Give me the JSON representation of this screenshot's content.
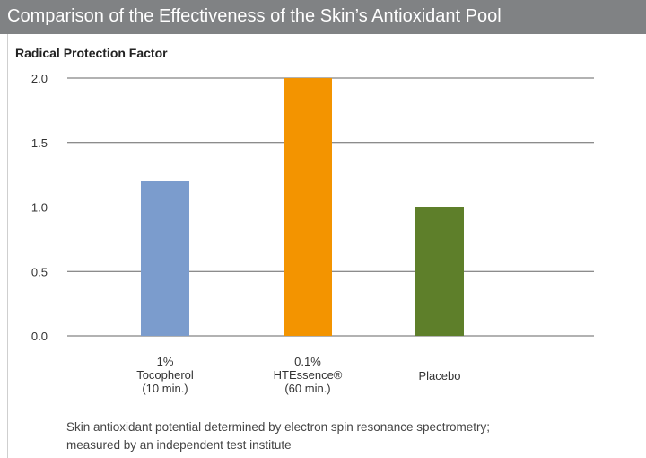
{
  "header": {
    "title": "Comparison of the Effectiveness of the Skin’s Antioxidant Pool"
  },
  "chart_data": {
    "type": "bar",
    "ylabel": "Radical Protection Factor",
    "xlabel": "",
    "ylim": [
      0,
      2.0
    ],
    "yticks": [
      "0.0",
      "0.5",
      "1.0",
      "1.5",
      "2.0"
    ],
    "grid": true,
    "categories": [
      {
        "lines": [
          "1%",
          "Tocopherol",
          "(10 min.)"
        ],
        "value": 1.2,
        "color": "#7b9ccd"
      },
      {
        "lines": [
          "0.1%",
          "HTEssence®",
          "(60 min.)"
        ],
        "value": 2.0,
        "color": "#f39400"
      },
      {
        "lines": [
          "Placebo"
        ],
        "value": 1.0,
        "color": "#5e7f2a"
      }
    ]
  },
  "caption": {
    "line1": "Skin antioxidant potential determined by electron spin resonance spectrometry;",
    "line2": "measured by an independent test institute"
  }
}
